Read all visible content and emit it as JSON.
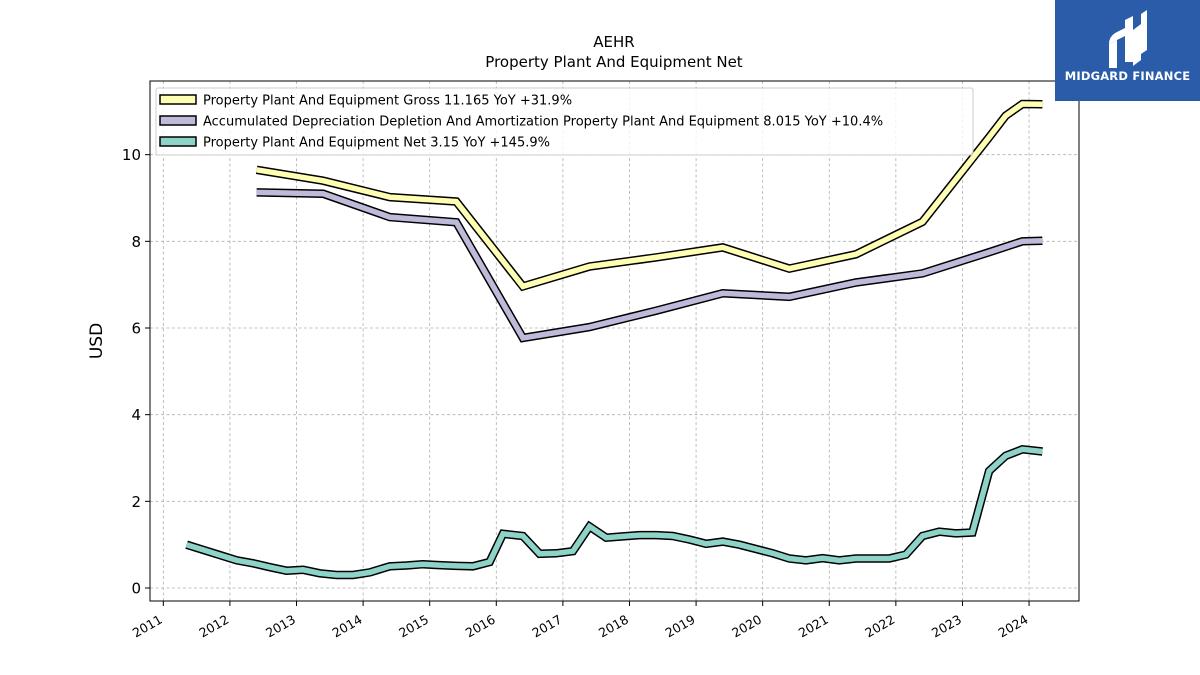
{
  "chart_data": {
    "type": "line",
    "title": "AEHR",
    "subtitle": "Property Plant And Equipment Net",
    "ylabel": "USD",
    "xlabel": "",
    "xlim": [
      2010.8,
      2024.75
    ],
    "ylim": [
      -0.3,
      11.7
    ],
    "yticks": [
      0,
      2,
      4,
      6,
      8,
      10
    ],
    "xticks": [
      2011,
      2012,
      2013,
      2014,
      2015,
      2016,
      2017,
      2018,
      2019,
      2020,
      2021,
      2022,
      2023,
      2024
    ],
    "grid": true,
    "legend_position": "top-left",
    "series": [
      {
        "name": "Property Plant And Equipment Gross  11.165 YoY +31.9%",
        "color": "#ffffb3",
        "x": [
          2012.4,
          2013.4,
          2014.4,
          2015.4,
          2016.4,
          2017.4,
          2018.4,
          2019.4,
          2020.4,
          2021.4,
          2022.4,
          2023.4,
          2023.65,
          2023.9,
          2024.2
        ],
        "y": [
          9.65,
          9.4,
          9.02,
          8.92,
          6.96,
          7.42,
          7.63,
          7.86,
          7.37,
          7.7,
          8.45,
          10.4,
          10.9,
          11.17,
          11.165
        ]
      },
      {
        "name": "Accumulated Depreciation Depletion And Amortization Property Plant And Equipment  8.015 YoY +10.4%",
        "color": "#bebada",
        "x": [
          2012.4,
          2013.4,
          2014.4,
          2015.4,
          2016.4,
          2017.4,
          2018.4,
          2019.4,
          2020.4,
          2021.4,
          2022.4,
          2023.4,
          2023.9,
          2024.2
        ],
        "y": [
          9.13,
          9.1,
          8.56,
          8.44,
          5.77,
          6.02,
          6.4,
          6.8,
          6.72,
          7.05,
          7.26,
          7.75,
          8.0,
          8.015
        ]
      },
      {
        "name": "Property Plant And Equipment Net  3.15 YoY +145.9%",
        "color": "#8dd3c7",
        "x": [
          2011.35,
          2011.6,
          2011.85,
          2012.1,
          2012.35,
          2012.6,
          2012.85,
          2013.1,
          2013.35,
          2013.6,
          2013.85,
          2014.1,
          2014.4,
          2014.65,
          2014.9,
          2015.1,
          2015.4,
          2015.65,
          2015.9,
          2016.1,
          2016.4,
          2016.65,
          2016.9,
          2017.15,
          2017.4,
          2017.65,
          2017.9,
          2018.15,
          2018.4,
          2018.65,
          2018.9,
          2019.15,
          2019.4,
          2019.65,
          2019.9,
          2020.15,
          2020.4,
          2020.65,
          2020.9,
          2021.15,
          2021.4,
          2021.65,
          2021.9,
          2022.15,
          2022.4,
          2022.65,
          2022.9,
          2023.15,
          2023.4,
          2023.65,
          2023.9,
          2024.2
        ],
        "y": [
          1.0,
          0.88,
          0.76,
          0.64,
          0.57,
          0.48,
          0.4,
          0.42,
          0.34,
          0.3,
          0.3,
          0.36,
          0.5,
          0.52,
          0.55,
          0.53,
          0.51,
          0.5,
          0.6,
          1.25,
          1.2,
          0.79,
          0.8,
          0.85,
          1.42,
          1.16,
          1.19,
          1.22,
          1.22,
          1.2,
          1.12,
          1.02,
          1.07,
          1.0,
          0.9,
          0.8,
          0.68,
          0.64,
          0.69,
          0.64,
          0.68,
          0.68,
          0.68,
          0.77,
          1.2,
          1.3,
          1.26,
          1.28,
          2.7,
          3.05,
          3.2,
          3.15
        ]
      }
    ]
  },
  "logo": {
    "text": "MIDGARD FINANCE",
    "background": "#2a5caa"
  }
}
